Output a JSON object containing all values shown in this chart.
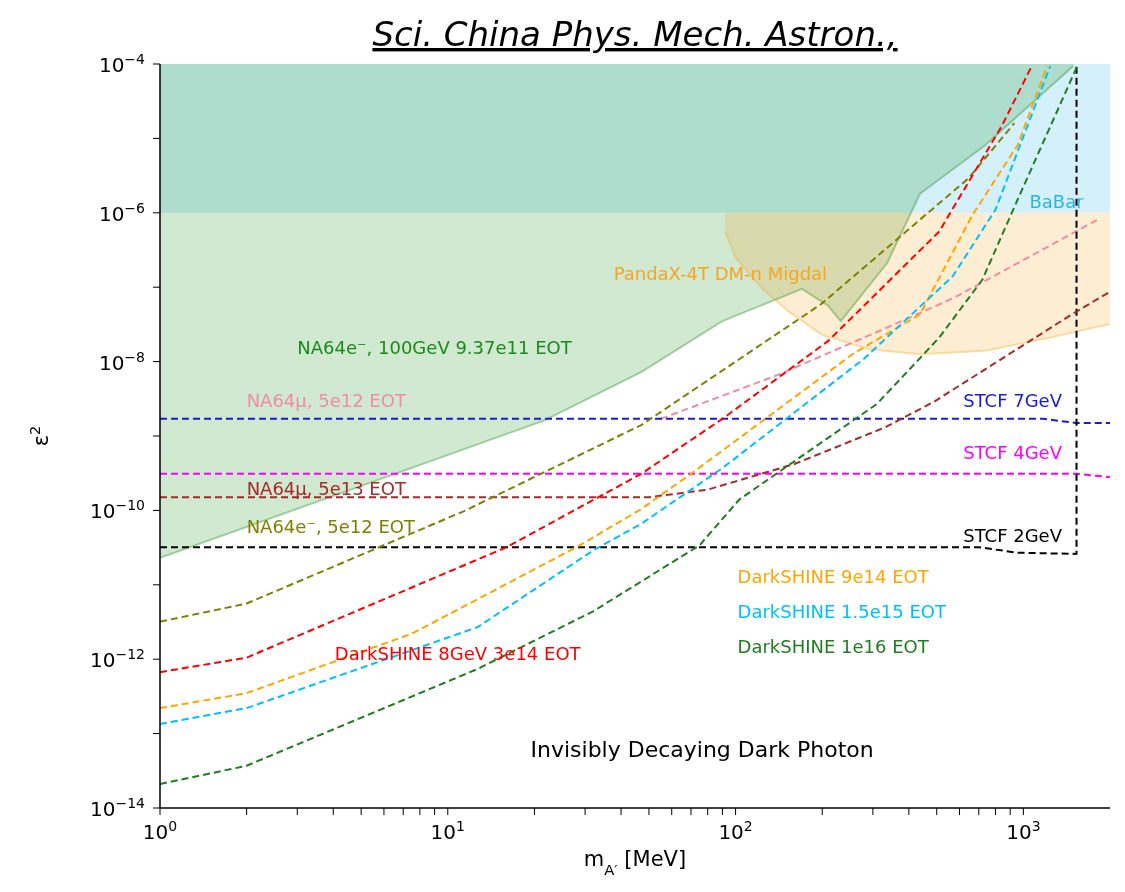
{
  "chart_data": {
    "type": "line",
    "title": "Sci. China Phys. Mech. Astron.,",
    "xlabel": "m$_{A′}$ [MeV]",
    "ylabel": "ε$^{2}$",
    "log": "xy",
    "line_style": "dashed",
    "marker": "none",
    "bands": [
      {
        "axis": "y",
        "from": 1e-06,
        "to": 0.0001,
        "label": "BaBar",
        "color": "#29b6e6"
      }
    ],
    "xlim": [
      1,
      2000
    ],
    "ylim": [
      1e-14,
      0.0001
    ],
    "xticks": [
      {
        "value": 1,
        "label": "10$^{0}$"
      },
      {
        "value": 2,
        "label": null
      },
      {
        "value": 3,
        "label": null
      },
      {
        "value": 4,
        "label": null
      },
      {
        "value": 5,
        "label": null
      },
      {
        "value": 6,
        "label": null
      },
      {
        "value": 7,
        "label": null
      },
      {
        "value": 8,
        "label": null
      },
      {
        "value": 9,
        "label": null
      },
      {
        "value": 10,
        "label": "10$^{1}$"
      },
      {
        "value": 20,
        "label": null
      },
      {
        "value": 30,
        "label": null
      },
      {
        "value": 40,
        "label": null
      },
      {
        "value": 50,
        "label": null
      },
      {
        "value": 60,
        "label": null
      },
      {
        "value": 70,
        "label": null
      },
      {
        "value": 80,
        "label": null
      },
      {
        "value": 90,
        "label": null
      },
      {
        "value": 100,
        "label": "10$^{2}$"
      },
      {
        "value": 200,
        "label": null
      },
      {
        "value": 300,
        "label": null
      },
      {
        "value": 400,
        "label": null
      },
      {
        "value": 500,
        "label": null
      },
      {
        "value": 600,
        "label": null
      },
      {
        "value": 700,
        "label": null
      },
      {
        "value": 800,
        "label": null
      },
      {
        "value": 900,
        "label": null
      },
      {
        "value": 1000,
        "label": "10$^{3}$"
      }
    ],
    "yticks": [
      {
        "value": 1e-14,
        "label": "10$^{−14}$"
      },
      {
        "value": 1e-13,
        "label": null
      },
      {
        "value": 1e-12,
        "label": "10$^{−12}$"
      },
      {
        "value": 1e-11,
        "label": null
      },
      {
        "value": 1e-10,
        "label": "10$^{−10}$"
      },
      {
        "value": 1e-09,
        "label": null
      },
      {
        "value": 1e-08,
        "label": "10$^{−8}$"
      },
      {
        "value": 1e-07,
        "label": null
      },
      {
        "value": 1e-06,
        "label": "10$^{−6}$"
      },
      {
        "value": 1e-05,
        "label": null
      },
      {
        "value": 0.0001,
        "label": "10$^{−4}$"
      }
    ],
    "annotations": [
      "Invisibly Decaying Dark Photon"
    ],
    "series": [
      {
        "type": "line",
        "line_style": "solid",
        "name": "NA64e⁻, 100GeV 9.37e11 EOT",
        "color": "#1a8a1a",
        "x": [
          1,
          21.5,
          47,
          90,
          170,
          209,
          232,
          336,
          437,
          737,
          1490
        ],
        "values": [
          2.3e-11,
          1.6e-09,
          7.2e-09,
          3.5e-08,
          9.5e-08,
          5.7e-08,
          3.5e-08,
          2.1e-07,
          1.8e-06,
          8.1e-06,
          9.4e-05
        ],
        "lower": [
          2.3e-11,
          1.6e-09,
          7.2e-09,
          3.5e-08,
          9.5e-08,
          5.7e-08,
          3.5e-08,
          2.1e-07,
          1.8e-06,
          8.1e-06,
          9.4e-05
        ],
        "upper": [
          0.0001,
          0.0001,
          0.0001,
          0.0001,
          0.0001,
          0.0001,
          0.0001,
          0.0001,
          0.0001,
          0.0001,
          0.0001
        ]
      },
      {
        "type": "line",
        "line_style": "solid",
        "name": "PandaX-4T DM-n Migdal",
        "color": "#f5a623",
        "x": [
          92,
          100,
          124,
          152,
          199,
          294,
          437,
          737,
          1240,
          2000
        ],
        "values": [
          5.6e-07,
          2.5e-07,
          9.5e-08,
          4.8e-08,
          2.3e-08,
          1.45e-08,
          1.26e-08,
          1.4e-08,
          2.1e-08,
          3.2e-08
        ],
        "lower": [
          5.6e-07,
          2.5e-07,
          9.5e-08,
          4.8e-08,
          2.3e-08,
          1.45e-08,
          1.26e-08,
          1.4e-08,
          2.1e-08,
          3.2e-08
        ],
        "upper": [
          1e-06,
          1e-06,
          1e-06,
          1e-06,
          1e-06,
          1e-06,
          1e-06,
          1e-06,
          1e-06,
          1e-06
        ]
      },
      {
        "name": "NA64μ, 5e12 EOT",
        "color": "#f08da5",
        "x": [
          55,
          140,
          310,
          570,
          1800
        ],
        "values": [
          1.7e-09,
          6.6e-09,
          2.5e-08,
          7.1e-08,
          8e-07
        ]
      },
      {
        "name": "STCF 7GeV",
        "color": "#1a1adb",
        "x": [
          1,
          1170,
          1520,
          2000
        ],
        "values": [
          1.7e-09,
          1.7e-09,
          1.5e-09,
          1.5e-09
        ]
      },
      {
        "name": "STCF 4GeV",
        "color": "#ff00ff",
        "x": [
          1,
          1530,
          2000
        ],
        "values": [
          3.1e-10,
          3.1e-10,
          2.8e-10
        ]
      },
      {
        "name": "STCF 2GeV",
        "color": "#000000",
        "x": [
          1,
          700,
          955,
          1530,
          1530
        ],
        "values": [
          3.2e-11,
          3.2e-11,
          2.7e-11,
          2.6e-11,
          0.0001
        ]
      },
      {
        "name": "NA64μ, 5e13 EOT",
        "color": "#a52a2a",
        "x": [
          1,
          50,
          80,
          160,
          330,
          490,
          1500,
          2000
        ],
        "values": [
          1.5e-10,
          1.5e-10,
          1.9e-10,
          4.2e-10,
          1.3e-09,
          2.9e-09,
          4.5e-08,
          8.7e-08
        ]
      },
      {
        "name": "NA64e⁻, 5e12 EOT",
        "color": "#808000",
        "x": [
          1,
          2,
          11.4,
          47,
          198,
          644,
          930
        ],
        "values": [
          3.2e-12,
          5.6e-12,
          9.8e-11,
          1.4e-09,
          5.9e-08,
          2.9e-06,
          1.6e-05
        ]
      },
      {
        "name": "DarkSHINE 8GeV 3e14 EOT",
        "color": "#ff0000",
        "x": [
          1,
          2,
          16,
          47,
          90,
          210,
          510,
          840,
          1070
        ],
        "values": [
          6.7e-13,
          1.05e-12,
          3.2e-11,
          3.1e-10,
          1.7e-09,
          1.9e-08,
          5.6e-07,
          1.45e-05,
          9.4e-05
        ]
      },
      {
        "name": "DarkSHINE 9e14 EOT",
        "color": "#ffa500",
        "x": [
          1,
          2,
          7.5,
          28,
          47,
          70,
          258,
          437,
          665,
          955,
          1210
        ],
        "values": [
          2.2e-13,
          3.5e-13,
          2.2e-12,
          3.2e-11,
          1.04e-10,
          3.1e-10,
          1.3e-08,
          4.3e-08,
          9.3e-07,
          8.1e-06,
          9.4e-05
        ]
      },
      {
        "name": "DarkSHINE 1.5e15 EOT",
        "color": "#00bfff",
        "x": [
          1,
          2,
          12.7,
          32,
          47,
          90,
          280,
          568,
          800,
          1240
        ],
        "values": [
          1.35e-13,
          2.2e-13,
          2.7e-12,
          2.9e-11,
          6.6e-11,
          3.7e-10,
          1.1e-08,
          1.4e-07,
          1.1e-06,
          9.4e-05
        ]
      },
      {
        "name": "DarkSHINE 1e16 EOT",
        "color": "#1e7f1e",
        "x": [
          1,
          2,
          12.7,
          32,
          75,
          103,
          310,
          510,
          720,
          955,
          1550
        ],
        "values": [
          2.1e-14,
          3.7e-14,
          7.4e-13,
          4.4e-12,
          3.4e-11,
          1.4e-10,
          2.7e-09,
          2.1e-08,
          1.26e-07,
          1.5e-06,
          0.0001
        ]
      }
    ]
  }
}
